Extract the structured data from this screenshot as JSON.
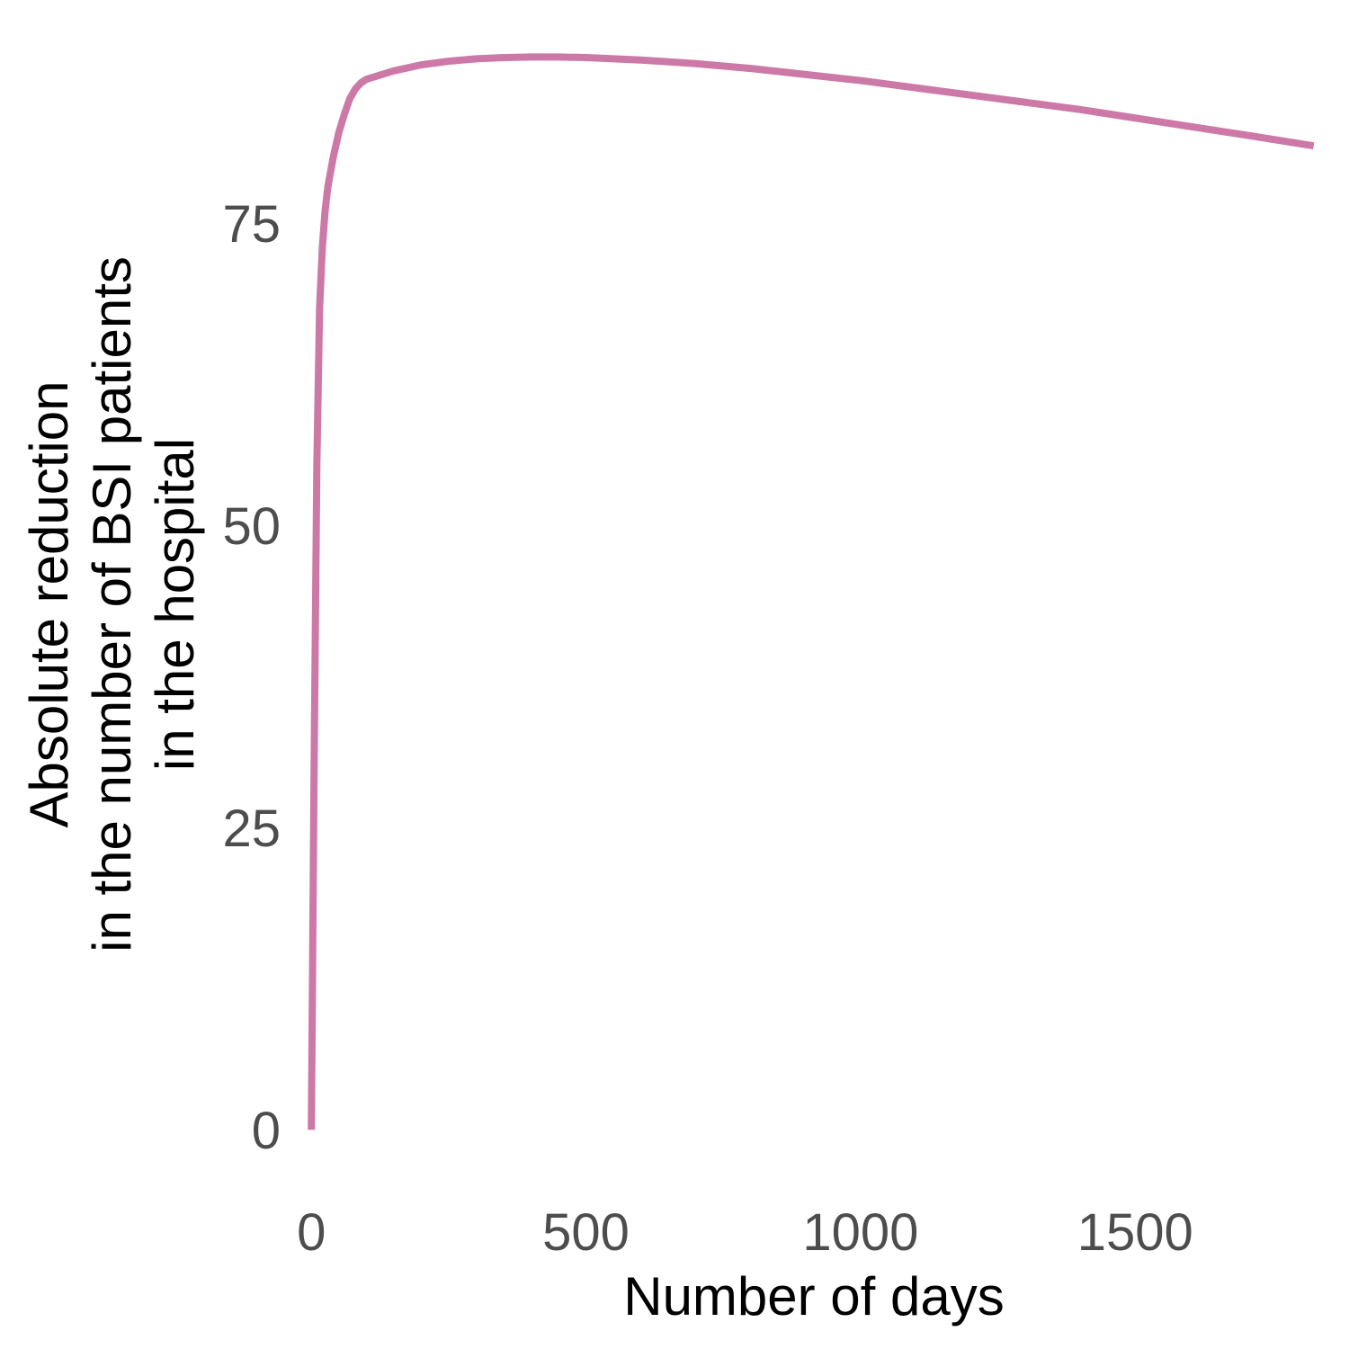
{
  "chart_data": {
    "type": "line",
    "xlabel": "Number of days",
    "ylabel_lines": [
      "Absolute reduction",
      "in the number of BSI patients",
      "in the hospital"
    ],
    "xlim": [
      -20,
      1850
    ],
    "ylim": [
      -4,
      89
    ],
    "x_ticks": [
      0,
      500,
      1000,
      1500
    ],
    "y_ticks": [
      0,
      25,
      50,
      75
    ],
    "grid": false,
    "series": [
      {
        "color": "#cc79a7",
        "x": [
          0,
          5,
          10,
          15,
          20,
          25,
          30,
          40,
          50,
          60,
          70,
          80,
          90,
          100,
          150,
          200,
          250,
          300,
          350,
          400,
          450,
          500,
          600,
          700,
          800,
          900,
          1000,
          1100,
          1200,
          1300,
          1400,
          1500,
          1600,
          1700,
          1825
        ],
        "y": [
          0,
          30,
          55,
          68,
          73,
          76,
          78,
          80.5,
          82.5,
          84,
          85.3,
          86.1,
          86.6,
          86.9,
          87.6,
          88.1,
          88.4,
          88.6,
          88.7,
          88.75,
          88.75,
          88.7,
          88.5,
          88.2,
          87.8,
          87.3,
          86.8,
          86.2,
          85.6,
          85.0,
          84.4,
          83.7,
          83.0,
          82.3,
          81.4
        ]
      }
    ]
  }
}
